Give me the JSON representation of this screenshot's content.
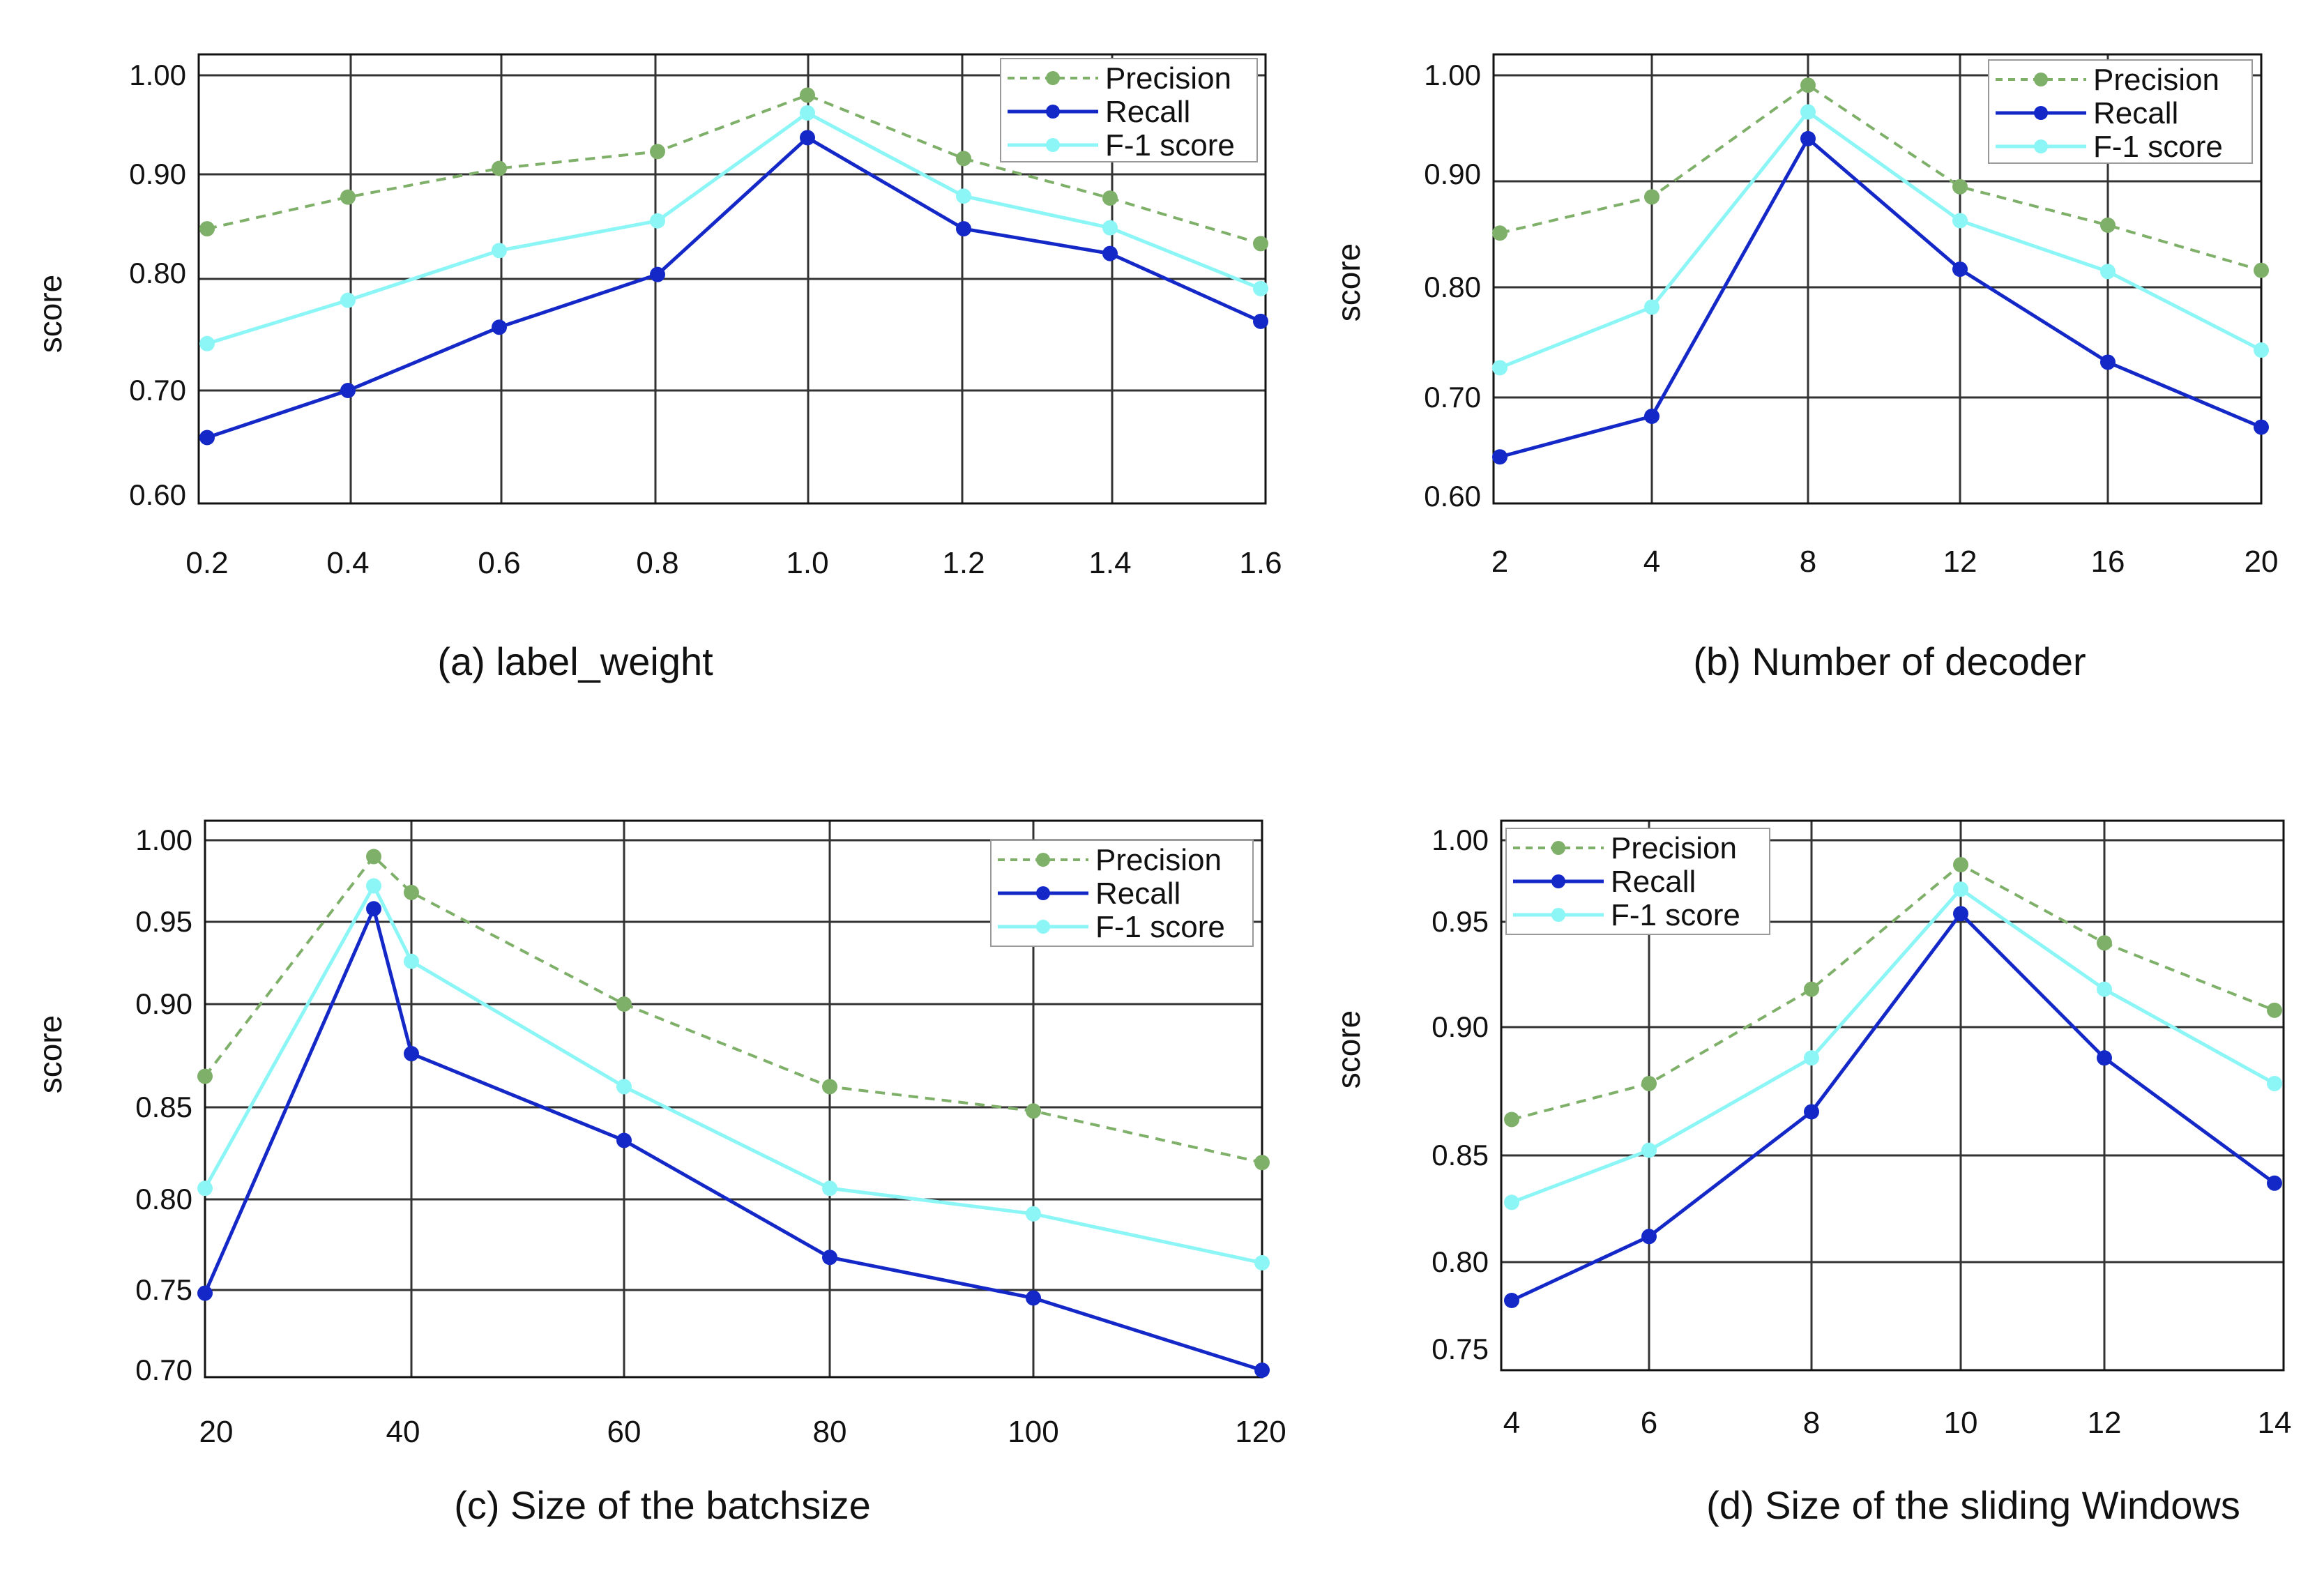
{
  "colors": {
    "precision": "#7fb069",
    "recall": "#1428c8",
    "f1": "#8cf6f6",
    "grid": "#333333",
    "axis": "#111111"
  },
  "chart_data": [
    {
      "type": "line",
      "title": "(a)    label_weight",
      "ylabel": "score",
      "categories": [
        "0.2",
        "0.4",
        "0.6",
        "0.8",
        "1.0",
        "1.2",
        "1.4",
        "1.6"
      ],
      "yticks": [
        "1.00",
        "0.90",
        "0.80",
        "0.70",
        "0.60"
      ],
      "series": [
        {
          "name": "Precision",
          "values": [
            0.845,
            0.877,
            0.906,
            0.923,
            0.98,
            0.916,
            0.876,
            0.83
          ]
        },
        {
          "name": "Recall",
          "values": [
            0.655,
            0.7,
            0.754,
            0.799,
            0.937,
            0.845,
            0.82,
            0.759
          ]
        },
        {
          "name": "F-1 score",
          "values": [
            0.74,
            0.777,
            0.823,
            0.853,
            0.962,
            0.878,
            0.846,
            0.787
          ]
        }
      ],
      "legend": "top-right"
    },
    {
      "type": "line",
      "title": "(b)  Number of  decoder",
      "ylabel": "score",
      "categories": [
        "2",
        "4",
        "8",
        "12",
        "16",
        "20"
      ],
      "yticks": [
        "1.00",
        "0.90",
        "0.80",
        "0.70",
        "0.60"
      ],
      "series": [
        {
          "name": "Precision",
          "values": [
            0.848,
            0.88,
            0.99,
            0.889,
            0.855,
            0.815
          ]
        },
        {
          "name": "Recall",
          "values": [
            0.64,
            0.681,
            0.936,
            0.816,
            0.732,
            0.67
          ]
        },
        {
          "name": "F-1 score",
          "values": [
            0.727,
            0.782,
            0.963,
            0.859,
            0.814,
            0.743
          ]
        }
      ],
      "legend": "top-right"
    },
    {
      "type": "line",
      "title": "(c)  Size of the batchsize",
      "ylabel": "score",
      "x": [
        20,
        36,
        40,
        60,
        80,
        100,
        120
      ],
      "xticks": [
        "20",
        "40",
        "60",
        "80",
        "100",
        "120"
      ],
      "yticks": [
        "1.00",
        "0.95",
        "0.90",
        "0.85",
        "0.80",
        "0.75",
        "0.70"
      ],
      "series": [
        {
          "name": "Precision",
          "values": [
            0.865,
            0.99,
            0.968,
            0.9,
            0.86,
            0.848,
            0.82
          ]
        },
        {
          "name": "Recall",
          "values": [
            0.748,
            0.958,
            0.876,
            0.832,
            0.768,
            0.745,
            0.7
          ]
        },
        {
          "name": "F-1 score",
          "values": [
            0.806,
            0.972,
            0.926,
            0.86,
            0.806,
            0.792,
            0.765
          ]
        }
      ],
      "legend": "top-right"
    },
    {
      "type": "line",
      "title": "(d)  Size of the sliding Windows",
      "ylabel": "score",
      "categories": [
        "4",
        "6",
        "8",
        "10",
        "12",
        "14"
      ],
      "yticks": [
        "1.00",
        "0.95",
        "0.90",
        "0.85",
        "0.80",
        "0.75"
      ],
      "series": [
        {
          "name": "Precision",
          "values": [
            0.864,
            0.878,
            0.918,
            0.985,
            0.94,
            0.908
          ]
        },
        {
          "name": "Recall",
          "values": [
            0.778,
            0.812,
            0.867,
            0.955,
            0.888,
            0.837
          ]
        },
        {
          "name": "F-1 score",
          "values": [
            0.828,
            0.852,
            0.888,
            0.97,
            0.918,
            0.878
          ]
        }
      ],
      "legend": "top-left"
    }
  ]
}
